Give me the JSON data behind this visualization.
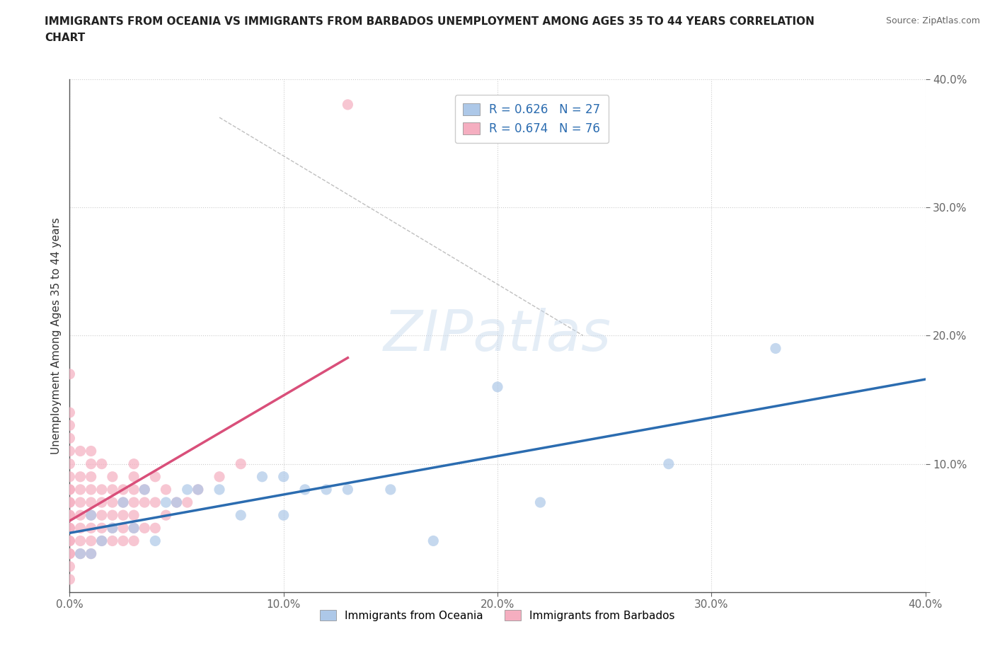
{
  "title": "IMMIGRANTS FROM OCEANIA VS IMMIGRANTS FROM BARBADOS UNEMPLOYMENT AMONG AGES 35 TO 44 YEARS CORRELATION\nCHART",
  "source": "Source: ZipAtlas.com",
  "ylabel": "Unemployment Among Ages 35 to 44 years",
  "xlim": [
    0.0,
    0.4
  ],
  "ylim": [
    0.0,
    0.4
  ],
  "xticks": [
    0.0,
    0.1,
    0.2,
    0.3,
    0.4
  ],
  "yticks": [
    0.0,
    0.1,
    0.2,
    0.3,
    0.4
  ],
  "xticklabels": [
    "0.0%",
    "10.0%",
    "20.0%",
    "30.0%",
    "40.0%"
  ],
  "yticklabels": [
    "",
    "10.0%",
    "20.0%",
    "30.0%",
    "40.0%"
  ],
  "oceania_color": "#adc8e8",
  "barbados_color": "#f5aec0",
  "oceania_line_color": "#2b6cb0",
  "barbados_line_color": "#d94f7a",
  "legend_text_color": "#2b6cb0",
  "R_oceania": 0.626,
  "N_oceania": 27,
  "R_barbados": 0.674,
  "N_barbados": 76,
  "watermark_text": "ZIPatlas",
  "oceania_x": [
    0.005,
    0.01,
    0.01,
    0.015,
    0.02,
    0.025,
    0.03,
    0.035,
    0.04,
    0.045,
    0.05,
    0.055,
    0.06,
    0.07,
    0.08,
    0.09,
    0.1,
    0.1,
    0.11,
    0.12,
    0.13,
    0.15,
    0.17,
    0.2,
    0.22,
    0.28,
    0.33
  ],
  "oceania_y": [
    0.03,
    0.03,
    0.06,
    0.04,
    0.05,
    0.07,
    0.05,
    0.08,
    0.04,
    0.07,
    0.07,
    0.08,
    0.08,
    0.08,
    0.06,
    0.09,
    0.09,
    0.06,
    0.08,
    0.08,
    0.08,
    0.08,
    0.04,
    0.16,
    0.07,
    0.1,
    0.19
  ],
  "barbados_x": [
    0.0,
    0.0,
    0.0,
    0.0,
    0.0,
    0.0,
    0.0,
    0.0,
    0.0,
    0.0,
    0.0,
    0.0,
    0.0,
    0.0,
    0.0,
    0.0,
    0.0,
    0.0,
    0.0,
    0.0,
    0.0,
    0.005,
    0.005,
    0.005,
    0.005,
    0.005,
    0.005,
    0.005,
    0.005,
    0.01,
    0.01,
    0.01,
    0.01,
    0.01,
    0.01,
    0.01,
    0.01,
    0.01,
    0.015,
    0.015,
    0.015,
    0.015,
    0.015,
    0.015,
    0.02,
    0.02,
    0.02,
    0.02,
    0.02,
    0.02,
    0.025,
    0.025,
    0.025,
    0.025,
    0.025,
    0.03,
    0.03,
    0.03,
    0.03,
    0.03,
    0.03,
    0.03,
    0.035,
    0.035,
    0.035,
    0.04,
    0.04,
    0.04,
    0.045,
    0.045,
    0.05,
    0.055,
    0.06,
    0.07,
    0.08,
    0.13
  ],
  "barbados_y": [
    0.01,
    0.02,
    0.03,
    0.03,
    0.04,
    0.04,
    0.05,
    0.05,
    0.06,
    0.06,
    0.07,
    0.07,
    0.08,
    0.08,
    0.09,
    0.1,
    0.11,
    0.12,
    0.13,
    0.14,
    0.17,
    0.03,
    0.04,
    0.05,
    0.06,
    0.07,
    0.08,
    0.09,
    0.11,
    0.03,
    0.04,
    0.05,
    0.06,
    0.07,
    0.08,
    0.09,
    0.1,
    0.11,
    0.04,
    0.05,
    0.06,
    0.07,
    0.08,
    0.1,
    0.04,
    0.05,
    0.06,
    0.07,
    0.08,
    0.09,
    0.04,
    0.05,
    0.06,
    0.07,
    0.08,
    0.04,
    0.05,
    0.06,
    0.07,
    0.08,
    0.09,
    0.1,
    0.05,
    0.07,
    0.08,
    0.05,
    0.07,
    0.09,
    0.06,
    0.08,
    0.07,
    0.07,
    0.08,
    0.09,
    0.1,
    0.38
  ],
  "background_color": "#ffffff",
  "grid_color": "#cccccc"
}
